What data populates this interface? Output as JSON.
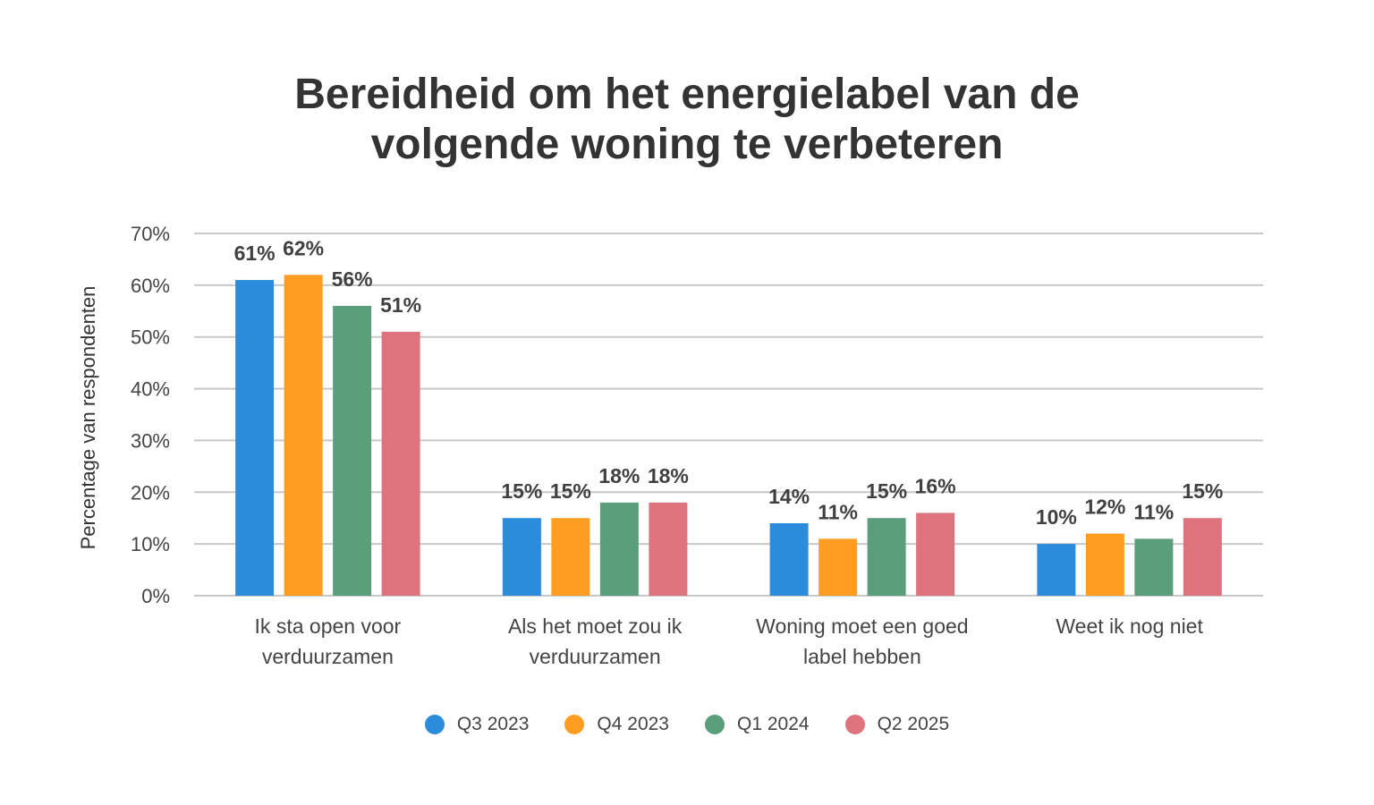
{
  "chart_data": {
    "type": "bar",
    "title_lines": [
      "Bereidheid om het energielabel van de",
      "volgende woning te verbeteren"
    ],
    "ylabel": "Percentage van respondenten",
    "ylim": [
      0,
      70
    ],
    "yticks": [
      0,
      10,
      20,
      30,
      40,
      50,
      60,
      70
    ],
    "ytick_labels": [
      "0%",
      "10%",
      "20%",
      "30%",
      "40%",
      "50%",
      "60%",
      "70%"
    ],
    "grid": true,
    "legend_position": "bottom",
    "categories": [
      [
        "Ik sta open voor",
        "verduurzamen"
      ],
      [
        "Als het moet zou ik",
        "verduurzamen"
      ],
      [
        "Woning moet een goed",
        "label hebben"
      ],
      [
        "Weet ik nog niet"
      ]
    ],
    "series": [
      {
        "name": "Q3 2023",
        "color": "#2b8cdb",
        "values": [
          61,
          15,
          14,
          10
        ],
        "labels": [
          "61%",
          "15%",
          "14%",
          "10%"
        ]
      },
      {
        "name": "Q4 2023",
        "color": "#ff9d23",
        "values": [
          62,
          15,
          11,
          12
        ],
        "labels": [
          "62%",
          "15%",
          "11%",
          "12%"
        ]
      },
      {
        "name": "Q1 2024",
        "color": "#5a9e7c",
        "values": [
          56,
          18,
          15,
          11
        ],
        "labels": [
          "56%",
          "18%",
          "15%",
          "11%"
        ]
      },
      {
        "name": "Q2 2025",
        "color": "#de727d",
        "values": [
          51,
          18,
          16,
          15
        ],
        "labels": [
          "51%",
          "18%",
          "16%",
          "15%"
        ]
      }
    ]
  }
}
